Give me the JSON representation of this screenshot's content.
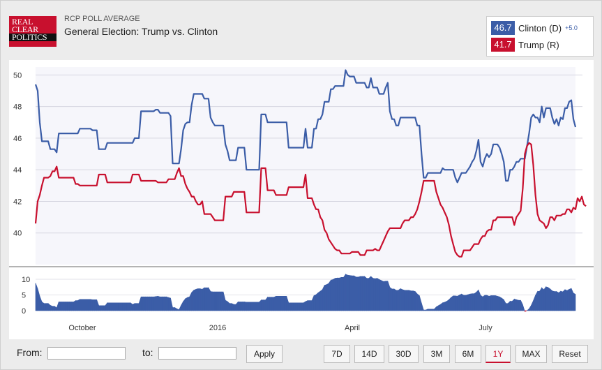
{
  "header": {
    "logo_lines": [
      "Real",
      "Clear",
      "Politics"
    ],
    "kicker": "RCP POLL AVERAGE",
    "title": "General Election: Trump vs. Clinton"
  },
  "legend": {
    "clinton": {
      "value": "46.7",
      "label": "Clinton (D)",
      "spread": "+5.0",
      "color": "#3b5da7"
    },
    "trump": {
      "value": "41.7",
      "label": "Trump (R)",
      "color": "#c8102e"
    }
  },
  "chart_data": [
    {
      "type": "line",
      "title": "",
      "ylim": [
        38,
        50.5
      ],
      "y_ticks": [
        "50",
        "48",
        "46",
        "44",
        "42",
        "40"
      ],
      "x_tick_labels": [
        "October",
        "2016",
        "April",
        "July"
      ],
      "grid": true,
      "series": [
        {
          "name": "Clinton (D)",
          "color": "#3b5da7",
          "values": [
            49.4,
            49.0,
            47.0,
            45.8,
            45.8,
            45.8,
            45.8,
            45.3,
            45.3,
            45.3,
            45.1,
            46.3,
            46.3,
            46.3,
            46.3,
            46.3,
            46.3,
            46.3,
            46.3,
            46.3,
            46.3,
            46.6,
            46.6,
            46.6,
            46.6,
            46.6,
            46.6,
            46.5,
            46.5,
            46.5,
            45.3,
            45.3,
            45.3,
            45.3,
            45.7,
            45.7,
            45.7,
            45.7,
            45.7,
            45.7,
            45.7,
            45.7,
            45.7,
            45.7,
            45.7,
            45.7,
            45.7,
            46.0,
            46.0,
            46.0,
            47.7,
            47.7,
            47.7,
            47.7,
            47.7,
            47.7,
            47.7,
            47.8,
            47.8,
            47.6,
            47.6,
            47.6,
            47.6,
            47.6,
            47.4,
            44.4,
            44.4,
            44.4,
            44.4,
            45.3,
            46.5,
            46.9,
            47.0,
            47.0,
            48.1,
            48.8,
            48.8,
            48.8,
            48.8,
            48.8,
            48.5,
            48.5,
            48.5,
            47.3,
            47.0,
            46.8,
            46.8,
            46.8,
            46.8,
            46.8,
            45.6,
            45.2,
            44.6,
            44.6,
            44.6,
            44.6,
            45.4,
            45.4,
            45.4,
            45.4,
            44.0,
            44.0,
            44.0,
            44.0,
            44.0,
            44.0,
            44.0,
            47.5,
            47.5,
            47.5,
            47.0,
            47.0,
            47.0,
            47.0,
            47.0,
            47.0,
            47.0,
            47.0,
            47.0,
            47.0,
            45.4,
            45.4,
            45.4,
            45.4,
            45.4,
            45.4,
            45.4,
            45.4,
            46.6,
            45.4,
            45.4,
            45.4,
            46.6,
            46.6,
            47.2,
            47.2,
            47.5,
            48.3,
            48.3,
            48.3,
            49.1,
            49.1,
            49.3,
            49.3,
            49.3,
            49.3,
            49.3,
            50.3,
            50.0,
            49.9,
            49.9,
            49.9,
            49.5,
            49.5,
            49.5,
            49.5,
            49.5,
            49.2,
            49.2,
            49.8,
            49.2,
            49.2,
            49.2,
            48.8,
            48.8,
            48.8,
            49.2,
            49.5,
            47.7,
            47.2,
            47.2,
            46.8,
            46.8,
            47.3,
            47.3,
            47.3,
            47.3,
            47.3,
            47.3,
            47.3,
            47.3,
            46.8,
            46.8,
            45.0,
            43.5,
            43.5,
            43.8,
            43.8,
            43.8,
            43.8,
            43.8,
            43.8,
            43.8,
            44.1,
            44.0,
            44.0,
            44.0,
            44.0,
            44.0,
            43.5,
            43.2,
            43.5,
            43.8,
            43.8,
            43.8,
            44.0,
            44.2,
            44.5,
            44.7,
            45.2,
            45.9,
            44.5,
            44.2,
            44.7,
            45.0,
            44.8,
            45.0,
            45.6,
            45.6,
            45.6,
            45.4,
            45.0,
            44.5,
            43.3,
            43.3,
            44.0,
            44.0,
            44.2,
            44.5,
            44.5,
            44.7,
            44.7,
            44.7,
            45.5,
            46.3,
            47.3,
            47.5,
            47.3,
            47.3,
            47.0,
            48.0,
            47.3,
            47.9,
            47.9,
            47.9,
            47.3,
            46.9,
            47.2,
            46.8,
            47.3,
            47.2,
            47.9,
            47.9,
            48.3,
            48.4,
            47.2,
            46.7
          ]
        },
        {
          "name": "Trump (R)",
          "color": "#c8102e",
          "values": [
            40.6,
            42.0,
            42.4,
            43.0,
            43.5,
            43.5,
            43.5,
            43.6,
            43.9,
            43.9,
            44.2,
            43.5,
            43.5,
            43.5,
            43.5,
            43.5,
            43.5,
            43.5,
            43.5,
            43.1,
            43.1,
            43.0,
            43.0,
            43.0,
            43.0,
            43.0,
            43.0,
            43.0,
            43.0,
            43.0,
            43.7,
            43.7,
            43.7,
            43.7,
            43.2,
            43.2,
            43.2,
            43.2,
            43.2,
            43.2,
            43.2,
            43.2,
            43.2,
            43.2,
            43.2,
            43.2,
            43.7,
            43.7,
            43.7,
            43.7,
            43.3,
            43.3,
            43.3,
            43.3,
            43.3,
            43.3,
            43.3,
            43.3,
            43.2,
            43.2,
            43.2,
            43.2,
            43.2,
            43.4,
            43.4,
            43.4,
            43.4,
            43.8,
            44.1,
            43.6,
            43.6,
            43.1,
            42.8,
            42.6,
            42.3,
            42.3,
            42.0,
            41.8,
            41.8,
            42.0,
            41.2,
            41.2,
            41.2,
            41.2,
            41.0,
            40.8,
            40.8,
            40.8,
            40.8,
            40.8,
            42.3,
            42.3,
            42.3,
            42.3,
            42.6,
            42.6,
            42.6,
            42.6,
            42.6,
            42.6,
            41.3,
            41.3,
            41.3,
            41.3,
            41.3,
            41.3,
            41.3,
            44.1,
            44.1,
            44.1,
            42.7,
            42.7,
            42.7,
            42.7,
            42.4,
            42.4,
            42.4,
            42.4,
            42.4,
            42.4,
            42.9,
            42.9,
            42.9,
            42.9,
            42.9,
            42.9,
            42.9,
            42.9,
            43.7,
            42.2,
            42.2,
            42.2,
            41.8,
            41.5,
            41.5,
            41.0,
            40.8,
            40.2,
            40.0,
            39.6,
            39.4,
            39.2,
            39.0,
            38.9,
            38.9,
            38.7,
            38.7,
            38.7,
            38.7,
            38.7,
            38.8,
            38.8,
            38.8,
            38.8,
            38.6,
            38.6,
            38.6,
            38.9,
            38.9,
            38.9,
            38.9,
            39.0,
            38.9,
            38.9,
            39.2,
            39.5,
            39.8,
            40.1,
            40.3,
            40.3,
            40.3,
            40.3,
            40.3,
            40.3,
            40.6,
            40.8,
            40.8,
            40.8,
            41.0,
            41.0,
            41.2,
            41.5,
            42.0,
            42.6,
            43.3,
            43.3,
            43.3,
            43.3,
            43.3,
            43.3,
            42.6,
            42.2,
            41.8,
            41.6,
            41.3,
            41.0,
            40.5,
            39.8,
            39.3,
            38.8,
            38.6,
            38.5,
            38.5,
            38.9,
            38.9,
            38.9,
            38.9,
            39.1,
            39.3,
            39.3,
            39.3,
            39.6,
            39.8,
            39.8,
            40.1,
            40.2,
            40.2,
            40.8,
            40.8,
            41.0,
            41.0,
            41.0,
            41.0,
            41.0,
            41.0,
            41.0,
            41.0,
            40.5,
            41.0,
            41.2,
            41.4,
            42.8,
            45.0,
            45.5,
            45.7,
            45.6,
            44.3,
            42.4,
            41.2,
            40.8,
            40.7,
            40.6,
            40.3,
            40.5,
            41.0,
            41.0,
            40.8,
            41.1,
            41.1,
            41.1,
            41.2,
            41.2,
            41.5,
            41.5,
            41.3,
            41.6,
            41.5,
            42.2,
            42.0,
            42.3,
            41.8,
            41.7
          ]
        }
      ]
    },
    {
      "type": "area",
      "title": "",
      "ylim": [
        0,
        12
      ],
      "y_ticks": [
        "10",
        "5",
        "0"
      ],
      "series": [
        {
          "name": "",
          "color": "#3b5da7",
          "negative_color": "#c8102e",
          "derived_from": "Clinton (D) minus Trump (R)"
        }
      ]
    }
  ],
  "controls": {
    "from_label": "From:",
    "to_label": "to:",
    "from_value": "",
    "to_value": "",
    "apply_label": "Apply",
    "ranges": [
      "7D",
      "14D",
      "30D",
      "3M",
      "6M",
      "1Y",
      "MAX",
      "Reset"
    ],
    "active_range": "1Y"
  }
}
